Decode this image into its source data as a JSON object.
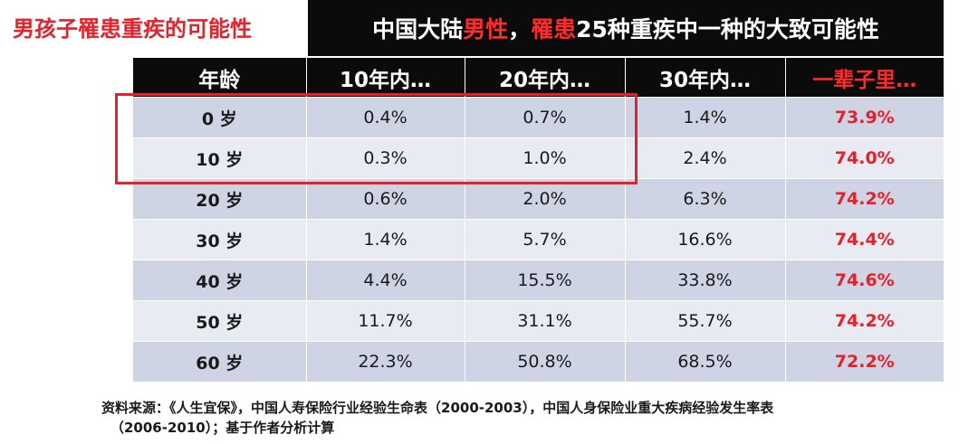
{
  "left_title": "男孩子罹患重疾的可能性",
  "banner": {
    "part1": "中国大陆",
    "part2": "男性",
    "part3": "，",
    "part4": "罹患",
    "part5": "25种重疾中一种的大致可能性"
  },
  "table": {
    "headers": [
      "年龄",
      "10年内…",
      "20年内…",
      "30年内…",
      "一辈子里…"
    ],
    "rows": [
      {
        "age": "0 岁",
        "y10": "0.4%",
        "y20": "0.7%",
        "y30": "1.4%",
        "life": "73.9%"
      },
      {
        "age": "10 岁",
        "y10": "0.3%",
        "y20": "1.0%",
        "y30": "2.4%",
        "life": "74.0%"
      },
      {
        "age": "20 岁",
        "y10": "0.6%",
        "y20": "2.0%",
        "y30": "6.3%",
        "life": "74.2%"
      },
      {
        "age": "30 岁",
        "y10": "1.4%",
        "y20": "5.7%",
        "y30": "16.6%",
        "life": "74.4%"
      },
      {
        "age": "40 岁",
        "y10": "4.4%",
        "y20": "15.5%",
        "y30": "33.8%",
        "life": "74.6%"
      },
      {
        "age": "50 岁",
        "y10": "11.7%",
        "y20": "31.1%",
        "y30": "55.7%",
        "life": "74.2%"
      },
      {
        "age": "60 岁",
        "y10": "22.3%",
        "y20": "50.8%",
        "y30": "68.5%",
        "life": "72.2%"
      }
    ]
  },
  "source": {
    "line1": "资料来源：《人生宜保》，中国人寿保险行业经验生命表（2000-2003），中国人身保险业重大疾病经验发生率表",
    "line2": "（2006-2010）；基于作者分析计算"
  },
  "colors": {
    "accent_red": "#e8202a",
    "header_black": "#0b0b0b",
    "row_dark": "#cfd4e4",
    "row_light": "#e9ebf3"
  }
}
